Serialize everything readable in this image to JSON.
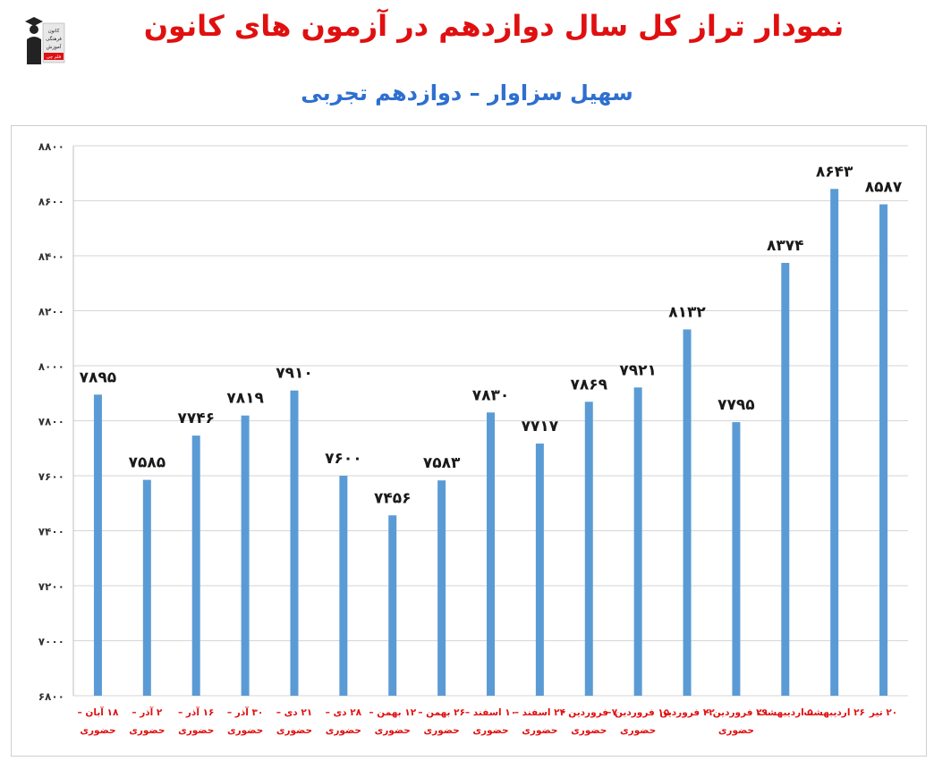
{
  "header": {
    "title": "نمودار تراز کل سال دوازدهم در آزمون های کانون",
    "subtitle": "سهیل سزاوار – دوازدهم تجربی",
    "title_color": "#e01010",
    "subtitle_color": "#2e6fd0"
  },
  "logo": {
    "icon": "graduate-logo-icon",
    "text_lines": [
      "کانون",
      "فرهنگی",
      "آموزش",
      "قلم چی"
    ]
  },
  "chart_data": {
    "type": "bar",
    "categories": [
      "۱۸ آبان – حضوری",
      "۲ آذر – حضوری",
      "۱۶ آذر – حضوری",
      "۳۰ آذر – حضوری",
      "۲۱ دی – حضوری",
      "۲۸ دی – حضوری",
      "۱۲ بهمن – حضوری",
      "۲۶ بهمن – حضوری",
      "۱۰ اسفند – حضوری",
      "۲۴ اسفند – حضوری",
      "۷ فروردین – حضوری",
      "۱۵ فروردین – حضوری",
      "۲۲ فروردین",
      "۲۹ فروردین – حضوری",
      "۵ اردیبهشت",
      "۲۶ اردیبهشت",
      "۲۰ تیر"
    ],
    "values": [
      7895,
      7585,
      7746,
      7819,
      7910,
      7600,
      7456,
      7583,
      7830,
      7717,
      7869,
      7921,
      8132,
      7795,
      8374,
      8643,
      8587
    ],
    "value_labels": [
      "۷۸۹۵",
      "۷۵۸۵",
      "۷۷۴۶",
      "۷۸۱۹",
      "۷۹۱۰",
      "۷۶۰۰",
      "۷۴۵۶",
      "۷۵۸۳",
      "۷۸۳۰",
      "۷۷۱۷",
      "۷۸۶۹",
      "۷۹۲۱",
      "۸۱۳۲",
      "۷۷۹۵",
      "۸۳۷۴",
      "۸۶۴۳",
      "۸۵۸۷"
    ],
    "yticks": [
      6800,
      7000,
      7200,
      7400,
      7600,
      7800,
      8000,
      8200,
      8400,
      8600,
      8800
    ],
    "ytick_labels": [
      "۶۸۰۰",
      "۷۰۰۰",
      "۷۲۰۰",
      "۷۴۰۰",
      "۷۶۰۰",
      "۷۸۰۰",
      "۸۰۰۰",
      "۸۲۰۰",
      "۸۴۰۰",
      "۸۶۰۰",
      "۸۸۰۰"
    ],
    "ylim": [
      6800,
      8800
    ],
    "grid": true,
    "legend": "none",
    "bar_color": "#5b9bd5",
    "category_color": "#e01010",
    "title": "",
    "xlabel": "",
    "ylabel": ""
  }
}
